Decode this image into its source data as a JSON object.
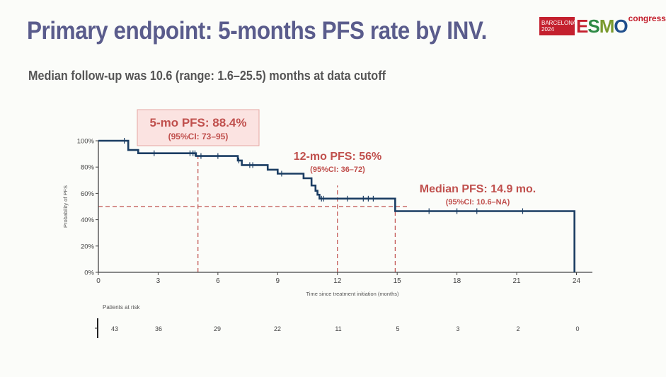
{
  "slide": {
    "title": "Primary endpoint: 5-months PFS rate by INV.",
    "subtitle": "Median follow-up was 10.6 (range: 1.6–25.5) months at data cutoff",
    "logo": {
      "city": "BARCELONA",
      "year": "2024",
      "brand_letters": [
        "E",
        "S",
        "M",
        "O"
      ],
      "brand_colors": [
        "#c4202e",
        "#2e8a45",
        "#7a9a2e",
        "#1f4e8c"
      ],
      "suffix": "congress"
    }
  },
  "annotations": {
    "five_mo": {
      "label": "5-mo PFS: 88.4%",
      "ci": "(95%CI: 73–95)"
    },
    "twelve_mo": {
      "label": "12-mo PFS: 56%",
      "ci": "(95%CI: 36–72)"
    },
    "median": {
      "label": "Median PFS: 14.9 mo.",
      "ci": "(95%CI: 10.6–NA)"
    }
  },
  "risk_table": {
    "label": "Patients at risk",
    "times": [
      0,
      3,
      6,
      9,
      12,
      15,
      18,
      21,
      24
    ],
    "counts": [
      "43",
      "36",
      "29",
      "22",
      "11",
      "5",
      "3",
      "2",
      "0"
    ]
  },
  "colors": {
    "curve": "#1b3d63",
    "reference": "#c0504d",
    "annotation_text": "#c0504d",
    "box_fill": "#fbe3e1",
    "box_border": "#e6a7a2",
    "title": "#5a5c8c"
  },
  "chart_data": {
    "type": "line",
    "subtype": "kaplan-meier-step",
    "title": "",
    "xlabel": "Time since treatment initiation (months)",
    "ylabel": "Probability of PFS",
    "xlim": [
      0,
      24.8
    ],
    "ylim": [
      0,
      100
    ],
    "xticks": [
      0,
      3,
      6,
      9,
      12,
      15,
      18,
      21,
      24
    ],
    "xtick_labels": [
      "0",
      "3",
      "6",
      "9",
      "12",
      "15",
      "18",
      "21",
      "24"
    ],
    "yticks": [
      0,
      20,
      40,
      60,
      80,
      100
    ],
    "ytick_labels": [
      "0%",
      "20%",
      "40%",
      "60%",
      "80%",
      "100%"
    ],
    "grid": false,
    "legend": "none",
    "series": [
      {
        "name": "PFS",
        "steps": [
          [
            0,
            100
          ],
          [
            1.5,
            93
          ],
          [
            2,
            90.5
          ],
          [
            4.9,
            88.4
          ],
          [
            7,
            85
          ],
          [
            7.2,
            81.5
          ],
          [
            8.5,
            78
          ],
          [
            9,
            75
          ],
          [
            10.3,
            71.5
          ],
          [
            10.7,
            66
          ],
          [
            10.9,
            62
          ],
          [
            11.0,
            59
          ],
          [
            11.1,
            56
          ],
          [
            14.9,
            46.5
          ],
          [
            23.9,
            0
          ]
        ],
        "censor_times": [
          [
            1.3,
            100
          ],
          [
            2.8,
            90.5
          ],
          [
            4.6,
            90.5
          ],
          [
            4.75,
            90.5
          ],
          [
            4.85,
            90.5
          ],
          [
            5.15,
            88.4
          ],
          [
            6.0,
            88.4
          ],
          [
            7.05,
            85
          ],
          [
            7.6,
            81.5
          ],
          [
            7.75,
            81.5
          ],
          [
            9.2,
            75
          ],
          [
            11.2,
            56
          ],
          [
            11.3,
            56
          ],
          [
            12.5,
            56
          ],
          [
            13.3,
            56
          ],
          [
            13.55,
            56
          ],
          [
            13.8,
            56
          ],
          [
            16.6,
            46.5
          ],
          [
            18.0,
            46.5
          ],
          [
            19.0,
            46.5
          ],
          [
            21.3,
            46.5
          ]
        ]
      }
    ],
    "reference_lines": [
      {
        "type": "horizontal",
        "y": 50,
        "x_from": 0,
        "x_to": 15.6
      },
      {
        "type": "vertical",
        "x": 5,
        "y_from": 0,
        "y_to": 89
      },
      {
        "type": "vertical",
        "x": 12,
        "y_from": 0,
        "y_to": 66
      },
      {
        "type": "vertical",
        "x": 14.9,
        "y_from": 0,
        "y_to": 50
      }
    ]
  }
}
